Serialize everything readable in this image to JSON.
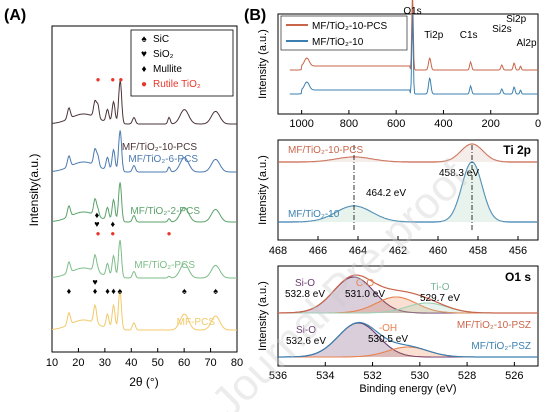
{
  "figure": {
    "panel_a_label": "(A)",
    "panel_b_label": "(B)",
    "watermark": "Journal Pre-proof"
  },
  "chart_data": [
    {
      "id": "A",
      "type": "line",
      "xlabel": "2θ (°)",
      "ylabel": "Intensity(a.u.)",
      "xlim": [
        10,
        80
      ],
      "xticks": [
        10,
        20,
        30,
        40,
        50,
        60,
        70,
        80
      ],
      "legend": {
        "placement": "top-right",
        "entries": [
          {
            "marker": "♠",
            "label": "SiC",
            "color": "#000000"
          },
          {
            "marker": "♥",
            "label": "SiO₂",
            "color": "#000000"
          },
          {
            "marker": "♦",
            "label": "Mullite",
            "color": "#000000"
          },
          {
            "marker": "●",
            "label": "Rutile TiO₂",
            "color": "#e8382b"
          }
        ]
      },
      "series": [
        {
          "name": "MF-PCS",
          "color": "#f2c96a",
          "offset": 0
        },
        {
          "name": "MF/TiO₂-PCS",
          "color": "#7dbd88",
          "offset": 1
        },
        {
          "name": "MF/TiO₂-2-PCS",
          "color": "#5aa26a",
          "offset": 2
        },
        {
          "name": "MF/TiO₂-6-PCS",
          "color": "#4b7ab0",
          "offset": 3
        },
        {
          "name": "MF/TiO₂-10-PCS",
          "color": "#4a3438",
          "offset": 4
        }
      ],
      "peaks": [
        {
          "x": 16.4,
          "h": 0.3
        },
        {
          "x": 26.3,
          "h": 0.45
        },
        {
          "x": 31.0,
          "h": 0.35
        },
        {
          "x": 33.3,
          "h": 0.6
        },
        {
          "x": 35.7,
          "h": 1.0
        },
        {
          "x": 41.0,
          "h": 0.18
        },
        {
          "x": 60.1,
          "h": 0.4
        },
        {
          "x": 71.9,
          "h": 0.35
        }
      ],
      "rutile_peaks": [
        {
          "x": 27.4,
          "h": 0.55
        },
        {
          "x": 36.1,
          "h": 0.45
        },
        {
          "x": 54.3,
          "h": 0.3
        }
      ],
      "markers": [
        {
          "x": 27.4,
          "row": 4,
          "symbol": "●"
        },
        {
          "x": 33.0,
          "row": 4,
          "symbol": "●"
        },
        {
          "x": 36.1,
          "row": 4,
          "symbol": "●"
        },
        {
          "x": 54.3,
          "row": 4,
          "symbol": "●"
        },
        {
          "x": 27.4,
          "row": 1,
          "symbol": "●"
        },
        {
          "x": 27.0,
          "row": 1,
          "symbol": "♥"
        },
        {
          "x": 27.0,
          "row": 1,
          "symbol": "♦"
        },
        {
          "x": 33.0,
          "row": 1,
          "symbol": "●"
        },
        {
          "x": 33.0,
          "row": 1,
          "symbol": "♦"
        },
        {
          "x": 54.3,
          "row": 1,
          "symbol": "●"
        },
        {
          "x": 16.4,
          "row": 0,
          "symbol": "♦"
        },
        {
          "x": 26.3,
          "row": 0,
          "symbol": "♦"
        },
        {
          "x": 26.3,
          "row": 0,
          "symbol": "♥"
        },
        {
          "x": 31.0,
          "row": 0,
          "symbol": "♦"
        },
        {
          "x": 33.3,
          "row": 0,
          "symbol": "♦"
        },
        {
          "x": 35.7,
          "row": 0,
          "symbol": "♠"
        },
        {
          "x": 60.1,
          "row": 0,
          "symbol": "♠"
        },
        {
          "x": 71.9,
          "row": 0,
          "symbol": "♠"
        }
      ]
    },
    {
      "id": "B-survey",
      "type": "line",
      "ylabel": "Intensity (a.u.)",
      "xlim": [
        1100,
        0
      ],
      "xticks": [
        1000,
        800,
        600,
        400,
        200,
        0
      ],
      "legend": {
        "placement": "top-left",
        "entries": [
          "MF/TiO₂-10-PCS",
          "MF/TiO₂-10"
        ]
      },
      "series": [
        {
          "name": "MF/TiO₂-10-PCS",
          "color": "#c9654a"
        },
        {
          "name": "MF/TiO₂-10",
          "color": "#3b80b0"
        }
      ],
      "annotations": [
        {
          "label": "O1s",
          "x": 531
        },
        {
          "label": "Ti2p",
          "x": 458
        },
        {
          "label": "C1s",
          "x": 285
        },
        {
          "label": "Si2s",
          "x": 153
        },
        {
          "label": "Si2p",
          "x": 101
        },
        {
          "label": "Al2p",
          "x": 74
        }
      ]
    },
    {
      "id": "B-Ti2p",
      "type": "line",
      "title": "Ti 2p",
      "ylabel": "Intensity (a.u.)",
      "xlim": [
        468,
        455
      ],
      "xticks": [
        468,
        466,
        464,
        462,
        460,
        458,
        456
      ],
      "series": [
        {
          "name": "MF/TiO₂-10-PCS",
          "color": "#c9654a"
        },
        {
          "name": "MF/TiO₂-10",
          "color": "#3b80b0"
        }
      ],
      "peaks": [
        {
          "label": "458.3 eV",
          "x": 458.3
        },
        {
          "label": "464.2 eV",
          "x": 464.2
        }
      ]
    },
    {
      "id": "B-O1s",
      "type": "line",
      "title": "O1 s",
      "xlabel": "Binding energy (eV)",
      "ylabel": "Intensity (a.u.)",
      "xlim": [
        536,
        525
      ],
      "xticks": [
        536,
        534,
        532,
        530,
        528,
        526
      ],
      "series": [
        {
          "name": "MF/TiO₂-10-PSZ",
          "color": "#c9654a"
        },
        {
          "name": "MF/TiO₂-PSZ",
          "color": "#3b80b0"
        }
      ],
      "components": [
        {
          "name": "Si-O",
          "value": "532.8 eV",
          "x": 532.8,
          "trace": 0,
          "color": "#6a3a70"
        },
        {
          "name": "C-O",
          "value": "531.0 eV",
          "x": 531.0,
          "trace": 0,
          "color": "#e8824f"
        },
        {
          "name": "Ti-O",
          "value": "529.7 eV",
          "x": 529.7,
          "trace": 0,
          "color": "#9fcfb5"
        },
        {
          "name": "Si-O",
          "value": "532.6 eV",
          "x": 532.6,
          "trace": 1,
          "color": "#6a3a70"
        },
        {
          "name": "-OH",
          "value": "530.5 eV",
          "x": 530.5,
          "trace": 1,
          "color": "#e8824f"
        }
      ]
    }
  ]
}
